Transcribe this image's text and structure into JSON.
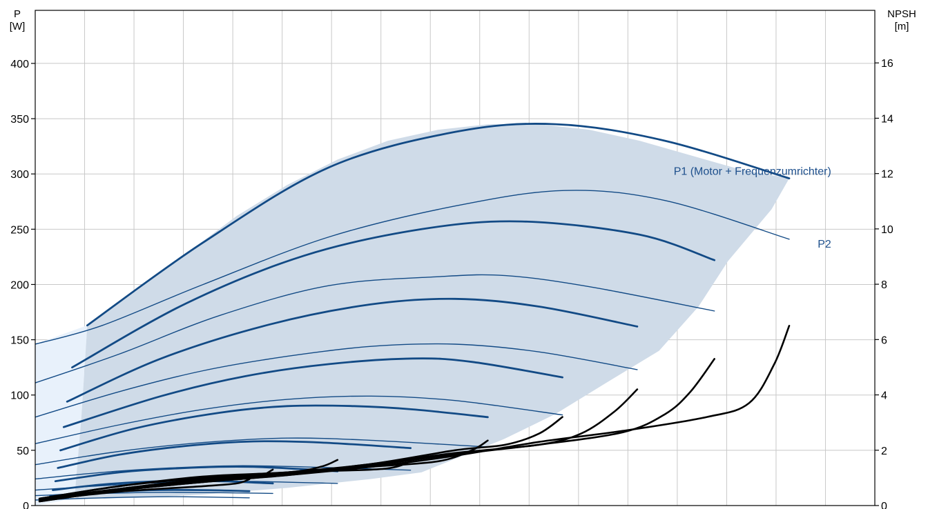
{
  "chart_data": {
    "type": "line",
    "title": "",
    "left_axis": {
      "label_line1": "P",
      "label_line2": "[W]",
      "ticks": [
        0,
        50,
        100,
        150,
        200,
        250,
        300,
        350,
        400
      ],
      "ylim": [
        0,
        448
      ]
    },
    "right_axis": {
      "label_line1": "NPSH",
      "label_line2": "[m]",
      "ticks": [
        0,
        2,
        4,
        6,
        8,
        10,
        12,
        14,
        16
      ],
      "ylim": [
        0,
        17.9
      ]
    },
    "x_axis": {
      "xlim": [
        0,
        100
      ],
      "gridlines": 17,
      "labels_visible": false
    },
    "grid": true,
    "colors": {
      "power": "#124a85",
      "npsh": "#000000",
      "operating_area": "#cfdbe8",
      "low_area": "#e8f1fb",
      "grid": "#c8c8c8",
      "label": "#1d4f8c"
    },
    "annotations": [
      {
        "text": "P1 (Motor + Frequenzumrichter)",
        "x": 94.8,
        "y": 303,
        "anchor": "end"
      },
      {
        "text": "P2",
        "x": 94.8,
        "y": 237,
        "anchor": "end"
      }
    ],
    "operating_area": [
      [
        6.2,
        163
      ],
      [
        12,
        194
      ],
      [
        18,
        228
      ],
      [
        24,
        262
      ],
      [
        30,
        290
      ],
      [
        36,
        313
      ],
      [
        42,
        330
      ],
      [
        48,
        340
      ],
      [
        54,
        345
      ],
      [
        60,
        345
      ],
      [
        66,
        340
      ],
      [
        72,
        330
      ],
      [
        78,
        317
      ],
      [
        84,
        304
      ],
      [
        89.8,
        296
      ],
      [
        87.7,
        268
      ],
      [
        82.5,
        221
      ],
      [
        79,
        180
      ],
      [
        74.3,
        140
      ],
      [
        68,
        111
      ],
      [
        62,
        83
      ],
      [
        55.8,
        60
      ],
      [
        46,
        30
      ],
      [
        40,
        24
      ],
      [
        30,
        16
      ],
      [
        20,
        10
      ],
      [
        12,
        7
      ],
      [
        5,
        6
      ],
      [
        4.7,
        9
      ],
      [
        5.5,
        80
      ],
      [
        6.2,
        163
      ]
    ],
    "low_area": [
      [
        0,
        0
      ],
      [
        0,
        146
      ],
      [
        6.2,
        163
      ],
      [
        5.5,
        80
      ],
      [
        4.7,
        9
      ],
      [
        3,
        4
      ],
      [
        0,
        0
      ]
    ],
    "series": [
      {
        "group": "P1",
        "x": [
          6.2,
          20,
          35,
          50,
          62,
          75,
          89.8
        ],
        "y": [
          163,
          238,
          306,
          338,
          345,
          330,
          296
        ],
        "width": 2.8
      },
      {
        "group": "P1",
        "x": [
          4.4,
          18,
          32,
          46,
          58,
          72,
          80.9
        ],
        "y": [
          125,
          183,
          226,
          250,
          257,
          245,
          222
        ],
        "width": 2.8
      },
      {
        "group": "P1",
        "x": [
          3.8,
          15,
          28,
          40,
          50,
          60,
          71.7
        ],
        "y": [
          94,
          133,
          164,
          182,
          187,
          180,
          162
        ],
        "width": 2.8
      },
      {
        "group": "P1",
        "x": [
          3.4,
          15,
          25,
          35,
          45,
          52,
          62.8
        ],
        "y": [
          71,
          99,
          117,
          128,
          133,
          130,
          116
        ],
        "width": 2.8
      },
      {
        "group": "P1",
        "x": [
          3.0,
          12,
          22,
          30,
          38,
          45,
          53.9
        ],
        "y": [
          50,
          70,
          84,
          90,
          90,
          87,
          80
        ],
        "width": 2.8
      },
      {
        "group": "P1",
        "x": [
          2.7,
          10,
          18,
          26,
          34,
          44.7
        ],
        "y": [
          34,
          46,
          54,
          58,
          57,
          52
        ],
        "width": 2.8
      },
      {
        "group": "P1",
        "x": [
          2.4,
          10,
          18,
          26,
          36.0
        ],
        "y": [
          22,
          30,
          34,
          35,
          31
        ],
        "width": 2.8
      },
      {
        "group": "P1",
        "x": [
          2.1,
          8,
          15,
          22,
          28.3
        ],
        "y": [
          14,
          19,
          22,
          22,
          20
        ],
        "width": 2.8
      },
      {
        "group": "P1",
        "x": [
          1.8,
          8,
          14,
          20,
          25.5
        ],
        "y": [
          9,
          12,
          14,
          14,
          13
        ],
        "width": 2.8
      },
      {
        "group": "P2",
        "x": [
          0,
          8,
          20,
          35,
          50,
          63,
          75,
          89.8
        ],
        "y": [
          146,
          163,
          200,
          243,
          271,
          285,
          276,
          241
        ],
        "width": 1.4
      },
      {
        "group": "P2",
        "x": [
          0,
          10,
          22,
          35,
          48,
          56,
          66,
          80.9
        ],
        "y": [
          111,
          137,
          172,
          199,
          207,
          208,
          198,
          176
        ],
        "width": 1.4
      },
      {
        "group": "P2",
        "x": [
          0,
          10,
          20,
          30,
          40,
          50,
          60,
          71.7
        ],
        "y": [
          80,
          103,
          122,
          135,
          144,
          146,
          139,
          123
        ],
        "width": 1.4
      },
      {
        "group": "P2",
        "x": [
          0,
          10,
          20,
          30,
          40,
          50,
          62.8
        ],
        "y": [
          56,
          73,
          87,
          96,
          99,
          95,
          82
        ],
        "width": 1.4
      },
      {
        "group": "P2",
        "x": [
          0,
          10,
          20,
          30,
          40,
          53.9
        ],
        "y": [
          37,
          49,
          57,
          61,
          59,
          53
        ],
        "width": 1.4
      },
      {
        "group": "P2",
        "x": [
          0,
          8,
          16,
          24,
          32,
          44.7
        ],
        "y": [
          24,
          30,
          34,
          36,
          35,
          32
        ],
        "width": 1.4
      },
      {
        "group": "P2",
        "x": [
          0,
          8,
          16,
          24,
          36.0
        ],
        "y": [
          14,
          18,
          21,
          22,
          20
        ],
        "width": 1.4
      },
      {
        "group": "P2",
        "x": [
          0,
          8,
          16,
          28.3
        ],
        "y": [
          9,
          11,
          12,
          11
        ],
        "width": 1.4
      },
      {
        "group": "P2",
        "x": [
          0,
          8,
          16,
          25.5
        ],
        "y": [
          5,
          7,
          8,
          7
        ],
        "width": 1.4
      },
      {
        "group": "NPSH",
        "x": [
          0.5,
          10,
          20,
          30,
          40,
          50,
          60,
          70,
          80,
          85,
          88,
          89.8
        ],
        "y": [
          0.15,
          0.55,
          0.85,
          1.1,
          1.4,
          1.8,
          2.3,
          2.7,
          3.2,
          3.7,
          5.1,
          6.5
        ],
        "width": 2.6
      },
      {
        "group": "NPSH",
        "x": [
          0.5,
          10,
          20,
          30,
          40,
          50,
          60,
          70,
          75,
          78,
          80.9
        ],
        "y": [
          0.15,
          0.55,
          0.85,
          1.1,
          1.45,
          1.85,
          2.2,
          2.65,
          3.3,
          4.1,
          5.3
        ],
        "width": 2.6
      },
      {
        "group": "NPSH",
        "x": [
          0.5,
          10,
          20,
          30,
          40,
          50,
          60,
          65,
          69,
          71.7
        ],
        "y": [
          0.2,
          0.6,
          0.9,
          1.15,
          1.5,
          1.9,
          2.2,
          2.6,
          3.4,
          4.2
        ],
        "width": 2.6
      },
      {
        "group": "NPSH",
        "x": [
          0.5,
          10,
          20,
          30,
          40,
          50,
          56,
          60,
          62.8
        ],
        "y": [
          0.2,
          0.6,
          0.95,
          1.2,
          1.5,
          2.0,
          2.2,
          2.6,
          3.2
        ],
        "width": 2.6
      },
      {
        "group": "NPSH",
        "x": [
          0.5,
          10,
          20,
          30,
          40,
          48,
          52,
          53.9
        ],
        "y": [
          0.2,
          0.6,
          0.95,
          1.15,
          1.4,
          1.6,
          2.0,
          2.35
        ],
        "width": 2.6
      },
      {
        "group": "NPSH",
        "x": [
          0.5,
          10,
          20,
          30,
          40,
          43,
          44.7
        ],
        "y": [
          0.25,
          0.7,
          1.0,
          1.2,
          1.3,
          1.4,
          1.6
        ],
        "width": 2.6
      },
      {
        "group": "NPSH",
        "x": [
          0.5,
          10,
          20,
          30,
          34,
          36.0
        ],
        "y": [
          0.25,
          0.7,
          1.05,
          1.2,
          1.4,
          1.65
        ],
        "width": 2.6
      },
      {
        "group": "NPSH",
        "x": [
          0.5,
          10,
          20,
          26,
          28.3
        ],
        "y": [
          0.25,
          0.6,
          0.9,
          1.0,
          1.3
        ],
        "width": 2.6
      },
      {
        "group": "NPSH",
        "x": [
          0.5,
          10,
          20,
          24,
          25.5
        ],
        "y": [
          0.2,
          0.5,
          0.7,
          0.8,
          0.95
        ],
        "width": 2.6
      }
    ]
  }
}
